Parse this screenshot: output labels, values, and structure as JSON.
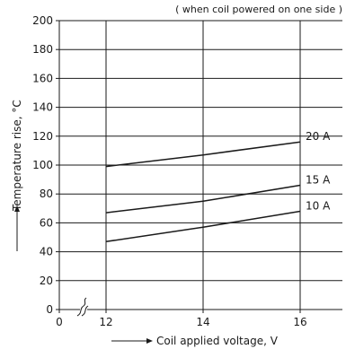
{
  "chart_data": {
    "type": "line",
    "note": "( when coil powered on one side )",
    "xlabel": "Coil applied voltage, V",
    "ylabel": "Temperature rise, °C",
    "xlim": [
      12,
      17
    ],
    "ylim": [
      0,
      200
    ],
    "x_ticks": [
      "0",
      "12",
      "14",
      "16"
    ],
    "y_ticks": [
      0,
      20,
      40,
      60,
      80,
      100,
      120,
      140,
      160,
      180,
      200
    ],
    "x_axis_break": true,
    "grid": true,
    "series": [
      {
        "name": "20 A",
        "x": [
          12,
          14,
          16
        ],
        "y": [
          99,
          107,
          116
        ]
      },
      {
        "name": "15 A",
        "x": [
          12,
          14,
          16
        ],
        "y": [
          67,
          75,
          86
        ]
      },
      {
        "name": "10 A",
        "x": [
          12,
          14,
          16
        ],
        "y": [
          47,
          57,
          68
        ]
      }
    ],
    "colors": {
      "line": "#1a1a1a",
      "grid": "#1a1a1a"
    }
  }
}
